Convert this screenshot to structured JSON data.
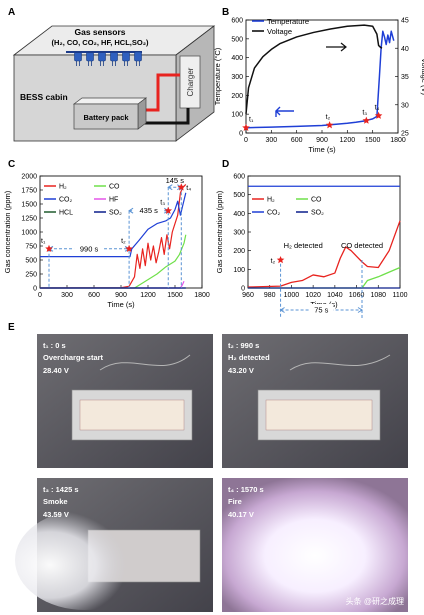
{
  "colors": {
    "red": "#e8231f",
    "blue": "#1f3fd6",
    "green": "#6fe04a",
    "magenta": "#e455e8",
    "navy": "#0b1e8a",
    "darkgreen": "#1f5a2e",
    "black": "#111111",
    "dash": "#5a93d4",
    "cabinFront": "#d6d6d6",
    "cabinTop": "#ececec",
    "cabinSide": "#b7b7b7"
  },
  "panelA": {
    "letter": "A",
    "sensors_title": "Gas sensors",
    "sensors_gases": "(H₂, CO, CO₂, HF, HCL,SO₂)",
    "cabin_label": "BESS cabin",
    "charger_label": "Charger",
    "battery_label": "Battery pack"
  },
  "chart_data": [
    {
      "panel": "B",
      "type": "line",
      "xlabel": "Time (s)",
      "ylabel": "Temperature (°C)",
      "y2label": "Voltage (V)",
      "xlim": [
        0,
        1800
      ],
      "ylim": [
        0,
        600
      ],
      "y2lim": [
        25,
        45
      ],
      "xticks": [
        0,
        300,
        600,
        900,
        1200,
        1500,
        1800
      ],
      "yticks": [
        0,
        100,
        200,
        300,
        400,
        500,
        600
      ],
      "y2ticks": [
        25,
        30,
        35,
        40,
        45
      ],
      "series": [
        {
          "name": "Temperature",
          "axis": "left",
          "x": [
            0,
            300,
            600,
            900,
            1000,
            1100,
            1200,
            1300,
            1400,
            1500,
            1550,
            1580,
            1600,
            1620,
            1640,
            1660,
            1680,
            1700,
            1720,
            1750
          ],
          "y": [
            28,
            31,
            35,
            40,
            44,
            48,
            52,
            57,
            64,
            75,
            88,
            300,
            450,
            540,
            510,
            470,
            520,
            480,
            540,
            490
          ]
        },
        {
          "name": "Voltage",
          "axis": "right",
          "x": [
            0,
            30,
            100,
            200,
            300,
            400,
            600,
            800,
            1000,
            1200,
            1400,
            1500,
            1550,
            1570,
            1590,
            1610
          ],
          "y": [
            28.4,
            33.0,
            36.5,
            38.5,
            39.8,
            40.8,
            42.0,
            42.8,
            43.4,
            43.9,
            44.1,
            43.9,
            42.5,
            40.5,
            40.2,
            40.0
          ]
        }
      ],
      "markers": [
        {
          "label": "t₁",
          "x": 0,
          "y": 28
        },
        {
          "label": "t₂",
          "x": 990,
          "y": 42
        },
        {
          "label": "t₃",
          "x": 1425,
          "y": 66
        },
        {
          "label": "t₄",
          "x": 1570,
          "y": 92
        }
      ],
      "grid": false,
      "legend": "top-left"
    },
    {
      "panel": "C",
      "type": "line",
      "xlabel": "Time (s)",
      "ylabel": "Gas concentration (ppm)",
      "xlim": [
        0,
        1800
      ],
      "ylim": [
        0,
        2000
      ],
      "xticks": [
        0,
        300,
        600,
        900,
        1200,
        1500,
        1800
      ],
      "yticks": [
        0,
        250,
        500,
        750,
        1000,
        1250,
        1500,
        1750,
        2000
      ],
      "series": [
        {
          "name": "H₂",
          "x": [
            0,
            900,
            990,
            1050,
            1080,
            1110,
            1140,
            1170,
            1200,
            1230,
            1260,
            1290,
            1320,
            1350,
            1380,
            1410,
            1440,
            1470,
            1500,
            1530,
            1560,
            1590,
            1620
          ],
          "y": [
            0,
            5,
            30,
            200,
            600,
            350,
            700,
            400,
            800,
            500,
            750,
            450,
            650,
            900,
            600,
            950,
            700,
            1000,
            1150,
            1300,
            1700,
            1800,
            1850
          ]
        },
        {
          "name": "CO",
          "x": [
            0,
            1050,
            1100,
            1200,
            1300,
            1400,
            1500,
            1550,
            1600,
            1620
          ],
          "y": [
            0,
            0,
            50,
            150,
            250,
            380,
            480,
            600,
            800,
            950
          ]
        },
        {
          "name": "CO₂",
          "x": [
            0,
            1000,
            1020,
            1100,
            1200,
            1300,
            1400,
            1450,
            1500,
            1530,
            1560,
            1590,
            1620
          ],
          "y": [
            560,
            560,
            700,
            850,
            1050,
            1150,
            1200,
            1250,
            1400,
            1550,
            1300,
            1500,
            1700
          ]
        },
        {
          "name": "HF",
          "x": [
            0,
            1560,
            1580,
            1600
          ],
          "y": [
            0,
            0,
            50,
            120
          ]
        },
        {
          "name": "HCL",
          "x": [
            0,
            1620
          ],
          "y": [
            0,
            0
          ]
        },
        {
          "name": "SO₂",
          "x": [
            0,
            1620
          ],
          "y": [
            0,
            0
          ]
        }
      ],
      "markers": [
        {
          "label": "t₁",
          "x": 100,
          "y": 700
        },
        {
          "label": "t₂",
          "x": 990,
          "y": 700
        },
        {
          "label": "t₃",
          "x": 1425,
          "y": 1380
        },
        {
          "label": "t₄",
          "x": 1570,
          "y": 1800
        }
      ],
      "annotations": [
        {
          "text": "990 s",
          "from": 100,
          "to": 990,
          "y": 700
        },
        {
          "text": "435 s",
          "from": 990,
          "to": 1425,
          "y": 1380
        },
        {
          "text": "145 s",
          "from": 1425,
          "to": 1570,
          "y": 1800
        }
      ],
      "grid": false,
      "legend": "top-left"
    },
    {
      "panel": "D",
      "type": "line",
      "xlabel": "Time (s)",
      "ylabel": "Gas concentration (ppm)",
      "xlim": [
        960,
        1100
      ],
      "ylim": [
        0,
        600
      ],
      "xticks": [
        960,
        980,
        1000,
        1020,
        1040,
        1060,
        1080,
        1100
      ],
      "yticks": [
        0,
        100,
        200,
        300,
        400,
        500,
        600
      ],
      "series": [
        {
          "name": "H₂",
          "x": [
            960,
            990,
            1000,
            1010,
            1020,
            1030,
            1040,
            1045,
            1050,
            1055,
            1060,
            1065,
            1070,
            1080,
            1090,
            1100
          ],
          "y": [
            5,
            10,
            30,
            40,
            70,
            60,
            80,
            160,
            220,
            200,
            170,
            140,
            115,
            110,
            200,
            360
          ]
        },
        {
          "name": "CO",
          "x": [
            960,
            1065,
            1070,
            1080,
            1090,
            1100
          ],
          "y": [
            0,
            0,
            40,
            60,
            85,
            110
          ]
        },
        {
          "name": "CO₂",
          "x": [
            960,
            1100
          ],
          "y": [
            545,
            545
          ]
        },
        {
          "name": "SO₂",
          "x": [
            960,
            1100
          ],
          "y": [
            0,
            0
          ]
        }
      ],
      "markers": [
        {
          "label": "t₂",
          "x": 990,
          "y": 150
        }
      ],
      "annotations": [
        {
          "text": "H₂ detected",
          "x": 990
        },
        {
          "text": "CO detected",
          "x": 1065
        },
        {
          "text": "75 s",
          "from": 990,
          "to": 1065,
          "y": -70
        }
      ],
      "grid": false,
      "legend": "top-left"
    }
  ],
  "panelE": {
    "letter": "E",
    "photos": [
      {
        "line1": "t₁ : 0 s",
        "line2": "Overcharge start",
        "line3": "28.40 V"
      },
      {
        "line1": "t₂ : 990 s",
        "line2": "H₂ detected",
        "line3": "43.20 V"
      },
      {
        "line1": "t₃ : 1425 s",
        "line2": "Smoke",
        "line3": "43.59 V"
      },
      {
        "line1": "t₄ : 1570 s",
        "line2": "Fire",
        "line3": "40.17 V"
      }
    ],
    "watermark": "头条 @研之成理"
  }
}
